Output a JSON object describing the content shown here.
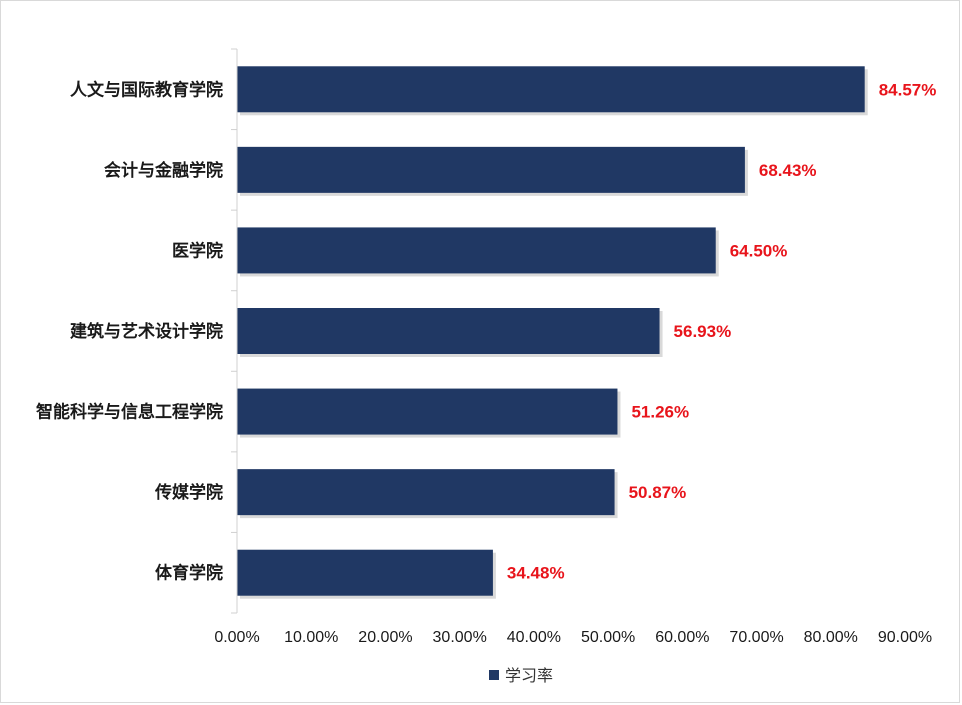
{
  "chart_data": {
    "type": "bar",
    "orientation": "horizontal",
    "categories": [
      "人文与国际教育学院",
      "会计与金融学院",
      "医学院",
      "建筑与艺术设计学院",
      "智能科学与信息工程学院",
      "传媒学院",
      "体育学院"
    ],
    "series": [
      {
        "name": "学习率",
        "values": [
          84.57,
          68.43,
          64.5,
          56.93,
          51.26,
          50.87,
          34.48
        ],
        "data_labels": [
          "84.57%",
          "68.43%",
          "64.50%",
          "56.93%",
          "51.26%",
          "50.87%",
          "34.48%"
        ]
      }
    ],
    "xlim": [
      0,
      90
    ],
    "x_ticks": [
      "0.00%",
      "10.00%",
      "20.00%",
      "30.00%",
      "40.00%",
      "50.00%",
      "60.00%",
      "70.00%",
      "80.00%",
      "90.00%"
    ],
    "grid": false,
    "legend_position": "bottom",
    "bar_color": "#203864",
    "data_label_color": "#e8141b"
  }
}
